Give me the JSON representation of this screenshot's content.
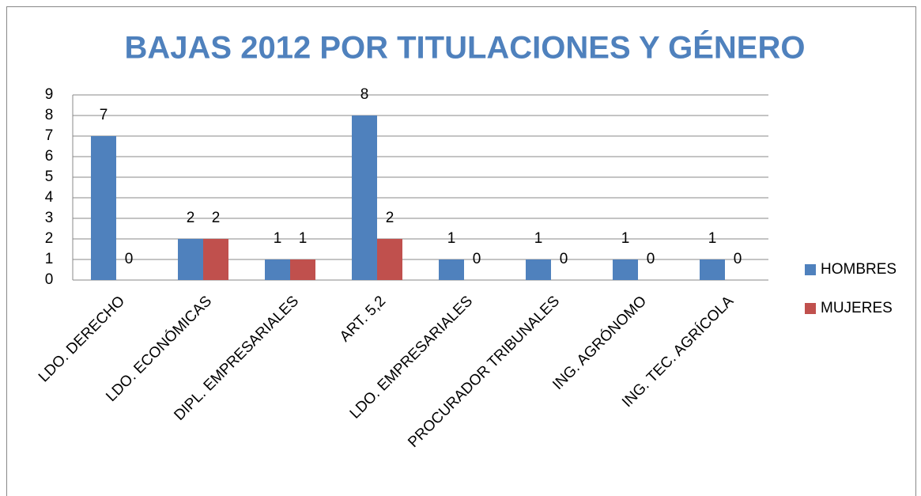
{
  "chart_data": {
    "type": "bar",
    "title": "BAJAS 2012 POR TITULACIONES Y GÉNERO",
    "categories": [
      "LDO. DERECHO",
      "LDO. ECONÓMICAS",
      "DIPL. EMPRESARIALES",
      "ART. 5,2",
      "LDO. EMPRESARIALES",
      "PROCURADOR TRIBUNALES",
      "ING. AGRÓNOMO",
      "ING. TEC. AGRÍCOLA"
    ],
    "series": [
      {
        "name": "HOMBRES",
        "color": "#4f81bd",
        "values": [
          7,
          2,
          1,
          8,
          1,
          1,
          1,
          1
        ]
      },
      {
        "name": "MUJERES",
        "color": "#c0504d",
        "values": [
          0,
          2,
          1,
          2,
          0,
          0,
          0,
          0
        ]
      }
    ],
    "ylim": [
      0,
      9
    ],
    "yticks": [
      0,
      1,
      2,
      3,
      4,
      5,
      6,
      7,
      8,
      9
    ],
    "grid": true,
    "legend": "right"
  }
}
